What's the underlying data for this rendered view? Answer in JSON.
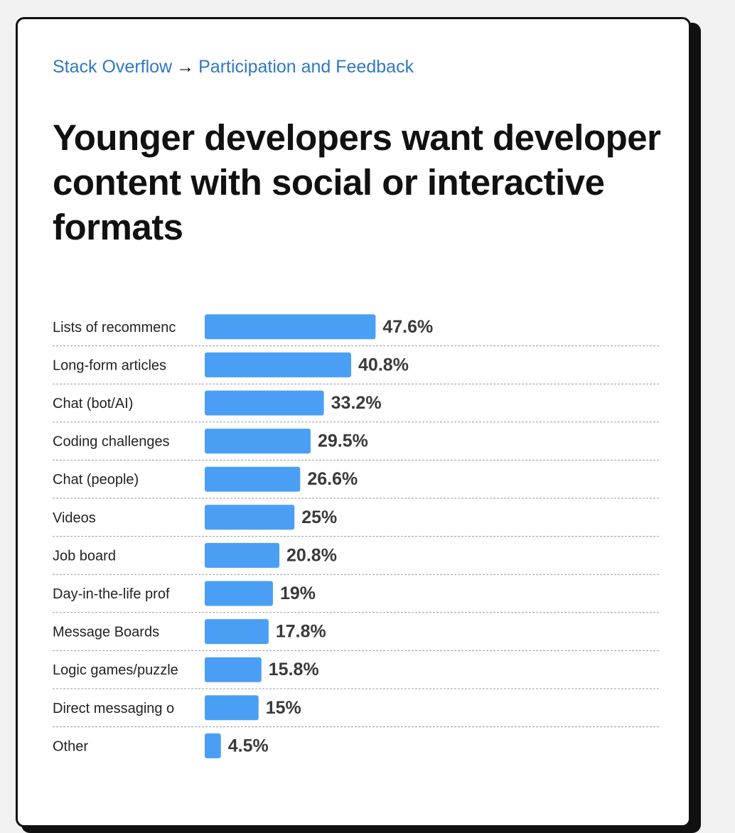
{
  "breadcrumb": {
    "parent": "Stack Overflow",
    "arrow": "→",
    "current": "Participation and Feedback"
  },
  "title": "Younger developers want developer content with social or interactive formats",
  "colors": {
    "bar": "#4a9ff5",
    "link": "#2f78c4"
  },
  "chart_data": {
    "type": "bar",
    "orientation": "horizontal",
    "categories": [
      "Lists of recommendations",
      "Long-form articles",
      "Chat (bot/AI)",
      "Coding challenges",
      "Chat (people)",
      "Videos",
      "Job board",
      "Day-in-the-life profiles",
      "Message Boards",
      "Logic games/puzzles",
      "Direct messaging o",
      "Other"
    ],
    "category_labels_visible": [
      "Lists of recommenc",
      "Long-form articles",
      "Chat (bot/AI)",
      "Coding challenges",
      "Chat (people)",
      "Videos",
      "Job board",
      "Day-in-the-life prof",
      "Message Boards",
      "Logic games/puzzle",
      "Direct messaging o",
      "Other"
    ],
    "values": [
      47.6,
      40.8,
      33.2,
      29.5,
      26.6,
      25,
      20.8,
      19,
      17.8,
      15.8,
      15,
      4.5
    ],
    "value_labels": [
      "47.6%",
      "40.8%",
      "33.2%",
      "29.5%",
      "26.6%",
      "25%",
      "20.8%",
      "19%",
      "17.8%",
      "15.8%",
      "15%",
      "4.5%"
    ],
    "unit": "%",
    "grid": false,
    "row_separators": "dashed"
  }
}
